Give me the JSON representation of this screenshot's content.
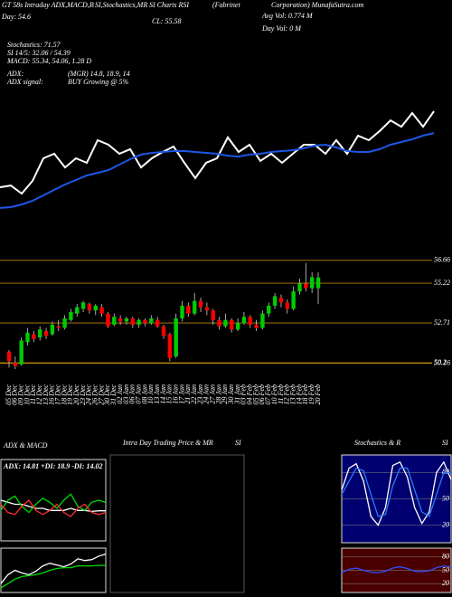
{
  "chart_data": [
    {
      "type": "line",
      "annotations": [
        "GT 58s Intraday ADX,MACD,B",
        "SI,Stochastics,MR",
        "SI Charts RSI",
        "(Fabrinet",
        "Corporation) MunafaSutra.com",
        "Avg Vol: 0.774  M",
        "Day Vol: 0  M",
        "CL: 55.58",
        "Day: 54.6",
        "Stochastics: 71.57",
        "SI 14/5: 32.06 / 54.39",
        "MACD: 55.34, 54.06, 1.28  D",
        "ADX:",
        "(MGR) 14.8, 18.9, 14",
        "ADX signal:",
        "BUY Growing @ 5%"
      ],
      "ylim": [
        50,
        58
      ],
      "series": [
        {
          "color": "#ffffff",
          "values": [
            52.03,
            52.15,
            51.6,
            52.46,
            54.0,
            54.31,
            53.38,
            54.0,
            53.69,
            55.23,
            54.92,
            54.31,
            54.62,
            53.38,
            54.0,
            54.43,
            54.8,
            53.69,
            52.65,
            53.69,
            54.0,
            55.42,
            54.43,
            54.92,
            53.82,
            54.31,
            53.69,
            54.31,
            54.92,
            54.92,
            54.31,
            55.23,
            54.31,
            55.54,
            55.23,
            55.85,
            56.58,
            56.15,
            57.08,
            56.15,
            57.2
          ]
        },
        {
          "color": "#1e56e6",
          "values": [
            50.62,
            50.68,
            50.86,
            51.11,
            51.48,
            51.85,
            52.22,
            52.52,
            52.83,
            53.01,
            53.2,
            53.57,
            53.94,
            54.25,
            54.37,
            54.43,
            54.49,
            54.49,
            54.43,
            54.37,
            54.31,
            54.18,
            54.12,
            54.25,
            54.31,
            54.43,
            54.49,
            54.55,
            54.68,
            54.86,
            54.92,
            54.74,
            54.49,
            54.43,
            54.43,
            54.62,
            54.92,
            55.11,
            55.29,
            55.54,
            55.72
          ]
        }
      ]
    },
    {
      "type": "candlestick",
      "categories": [
        "05 Dec",
        "06 Dec",
        "09 Dec",
        "10 Dec",
        "11 Dec",
        "12 Dec",
        "13 Dec",
        "16 Dec",
        "17 Dec",
        "18 Dec",
        "19 Dec",
        "20 Dec",
        "23 Dec",
        "24 Dec",
        "26 Dec",
        "27 Dec",
        "30 Dec",
        "31 Dec",
        "02 Jan",
        "03 Jan",
        "06 Jan",
        "07 Jan",
        "08 Jan",
        "10 Jan",
        "13 Jan",
        "14 Jan",
        "15 Jan",
        "16 Jan",
        "17 Jan",
        "21 Jan",
        "22 Jan",
        "23 Jan",
        "24 Jan",
        "27 Jan",
        "28 Jan",
        "29 Jan",
        "30 Jan",
        "31 Jan",
        "03 Feb",
        "04 Feb",
        "05 Feb",
        "06 Feb",
        "07 Feb",
        "10 Feb",
        "11 Feb",
        "12 Feb",
        "13 Feb",
        "14 Feb",
        "18 Feb",
        "19 Feb",
        "20 Feb"
      ],
      "open": [
        50.9,
        50.2,
        50.1,
        51.5,
        52.0,
        51.8,
        52.2,
        52.0,
        52.5,
        52.4,
        52.9,
        53.3,
        53.6,
        53.9,
        53.5,
        53.7,
        53.3,
        52.6,
        53.0,
        52.8,
        53.0,
        52.6,
        52.9,
        52.7,
        52.9,
        52.5,
        52.0,
        50.6,
        53.0,
        53.8,
        53.3,
        54.1,
        53.7,
        53.5,
        52.9,
        52.5,
        52.9,
        52.3,
        52.7,
        53.1,
        52.6,
        52.4,
        53.3,
        53.8,
        54.3,
        54.0,
        53.6,
        54.7,
        55.2,
        54.9,
        54.9
      ],
      "high": [
        51.0,
        50.6,
        51.8,
        52.4,
        52.2,
        52.5,
        52.4,
        52.8,
        52.9,
        53.2,
        53.6,
        53.9,
        54.1,
        54.0,
        53.9,
        53.9,
        53.4,
        53.3,
        53.2,
        53.1,
        53.1,
        53.0,
        53.0,
        53.2,
        53.1,
        52.6,
        52.1,
        53.3,
        54.1,
        54.0,
        54.6,
        54.3,
        54.0,
        53.6,
        53.1,
        53.3,
        53.0,
        53.0,
        53.4,
        53.2,
        52.9,
        53.5,
        54.0,
        54.6,
        54.5,
        54.2,
        55.0,
        55.5,
        56.5,
        55.9,
        55.9
      ],
      "low": [
        49.9,
        49.8,
        50.0,
        51.3,
        51.5,
        51.6,
        51.7,
        51.9,
        52.2,
        52.3,
        52.8,
        53.1,
        53.4,
        53.3,
        53.2,
        53.1,
        52.4,
        52.5,
        52.6,
        52.6,
        52.4,
        52.4,
        52.5,
        52.6,
        52.4,
        51.7,
        50.3,
        50.5,
        52.8,
        53.1,
        53.2,
        53.4,
        53.2,
        52.6,
        52.3,
        52.4,
        52.1,
        52.2,
        52.6,
        52.4,
        52.2,
        52.3,
        53.1,
        53.6,
        53.7,
        53.3,
        53.5,
        54.5,
        54.7,
        54.6,
        53.9
      ],
      "close": [
        50.3,
        50.0,
        51.6,
        52.1,
        51.7,
        52.3,
        51.9,
        52.6,
        52.4,
        53.0,
        53.4,
        53.7,
        54.0,
        53.5,
        53.8,
        53.3,
        52.5,
        53.1,
        52.8,
        53.0,
        52.6,
        52.9,
        52.7,
        53.0,
        52.5,
        51.9,
        50.5,
        53.0,
        53.8,
        53.3,
        54.1,
        53.7,
        53.5,
        52.9,
        52.5,
        52.9,
        52.3,
        52.7,
        53.1,
        52.6,
        52.4,
        53.3,
        53.8,
        54.4,
        54.0,
        53.6,
        54.7,
        55.2,
        54.9,
        55.6,
        55.58
      ],
      "up_color": "#00cc00",
      "down_color": "#ff0000",
      "tick_color": "#b8860b",
      "ylim": [
        49.12,
        56.82
      ],
      "yticks": [
        56.66,
        55.22,
        52.71,
        50.2,
        50.16
      ]
    },
    {
      "type": "line",
      "title": "ADX & MACD",
      "subtitle": "ADX: 14.81 +DI: 18.9 -DI: 14.02",
      "ylim": [
        0,
        40
      ],
      "series": [
        {
          "color": "#ffffff",
          "values": [
            20,
            19,
            18,
            18,
            17,
            16,
            16,
            15,
            15,
            15,
            16,
            15,
            15,
            14.5,
            14.8,
            14.81
          ]
        },
        {
          "color": "#00dd00",
          "values": [
            15,
            20,
            22,
            17,
            14,
            18,
            21,
            19,
            16,
            20,
            23,
            17,
            15,
            19,
            20,
            18.9
          ]
        },
        {
          "color": "#ff3030",
          "values": [
            18,
            14,
            13,
            17,
            20,
            15,
            13,
            15,
            18,
            14,
            12,
            16,
            18,
            14,
            13,
            14.02
          ]
        }
      ]
    },
    {
      "type": "line",
      "ylim": [
        51,
        56
      ],
      "series": [
        {
          "color": "#ffffff",
          "values": [
            52,
            53,
            53.5,
            53.2,
            53,
            53.4,
            54,
            54.3,
            54.1,
            53.9,
            54.2,
            54.8,
            54.6,
            54.7,
            55.1,
            55.34
          ]
        },
        {
          "color": "#00dd00",
          "values": [
            51.5,
            52.0,
            52.5,
            52.8,
            52.9,
            53.0,
            53.2,
            53.5,
            53.7,
            53.8,
            53.8,
            54.0,
            54.0,
            54.0,
            54.05,
            54.06
          ]
        }
      ]
    },
    {
      "type": "line",
      "title_parts": [
        "Intra Day Trading Price & MR",
        "SI"
      ],
      "series": []
    },
    {
      "type": "line",
      "title_parts": [
        "Stochastics & R",
        "SI"
      ],
      "ylim": [
        0,
        100
      ],
      "yticks": [
        20,
        50,
        80
      ],
      "series": [
        {
          "color": "#ffffff",
          "values": [
            60,
            85,
            90,
            70,
            30,
            20,
            40,
            88,
            92,
            75,
            40,
            22,
            35,
            80,
            92,
            72
          ]
        },
        {
          "color": "#2a7bff",
          "values": [
            55,
            70,
            85,
            82,
            55,
            30,
            32,
            65,
            85,
            85,
            60,
            35,
            30,
            55,
            80,
            80
          ]
        }
      ]
    },
    {
      "type": "line",
      "ylim": [
        0,
        100
      ],
      "yticks": [
        20,
        50,
        80
      ],
      "series": [
        {
          "color": "#3050ff",
          "values": [
            45,
            52,
            55,
            50,
            46,
            45,
            48,
            55,
            58,
            54,
            48,
            47,
            49,
            56,
            60,
            58
          ]
        }
      ]
    }
  ]
}
